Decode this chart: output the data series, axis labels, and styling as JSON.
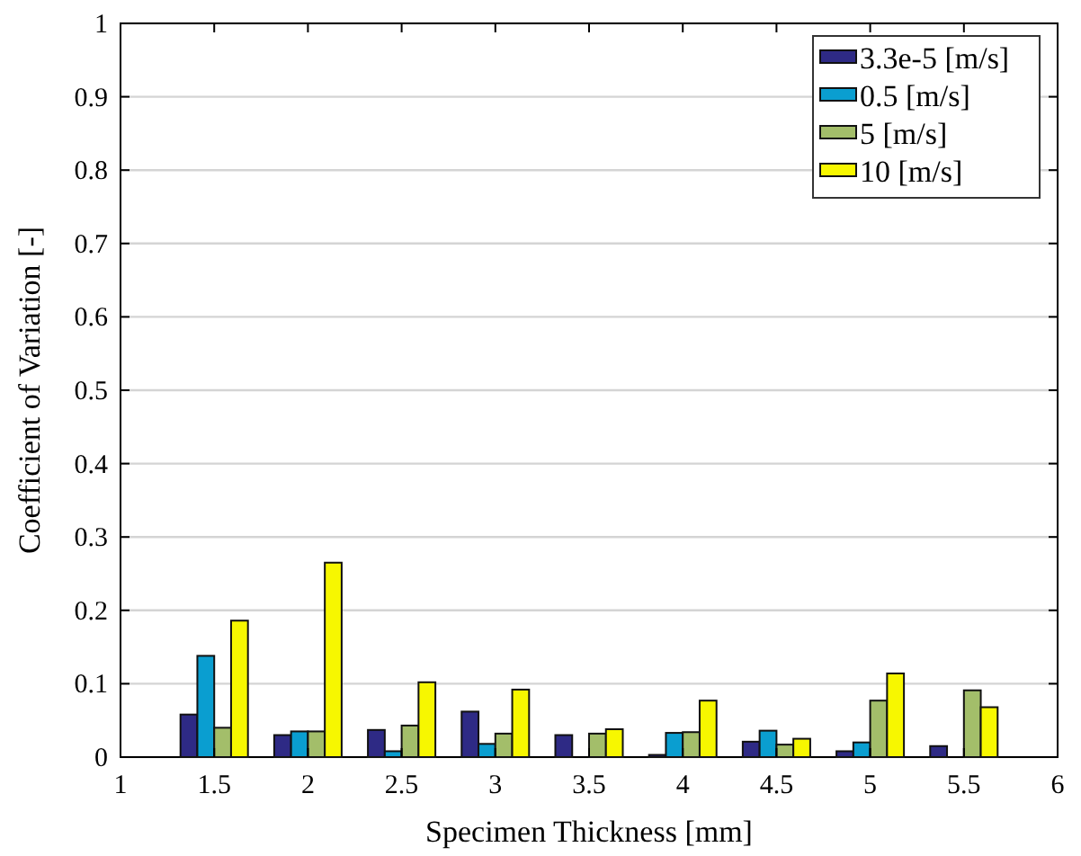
{
  "chart_data": {
    "type": "bar",
    "xlabel": "Specimen Thickness [mm]",
    "ylabel": "Coefficient of Variation [-]",
    "x": [
      1.5,
      2,
      2.5,
      3,
      3.5,
      4,
      4.5,
      5,
      5.5
    ],
    "series": [
      {
        "name": "3.3e-5 [m/s]",
        "color": "#2e2a85",
        "values": [
          0.058,
          0.03,
          0.037,
          0.062,
          0.03,
          0.003,
          0.021,
          0.008,
          0.015
        ]
      },
      {
        "name": "0.5 [m/s]",
        "color": "#0a9ed0",
        "values": [
          0.138,
          0.035,
          0.008,
          0.018,
          null,
          0.033,
          0.036,
          0.02,
          null
        ]
      },
      {
        "name": "5 [m/s]",
        "color": "#a3be6a",
        "values": [
          0.04,
          0.035,
          0.043,
          0.032,
          0.032,
          0.034,
          0.017,
          0.077,
          0.091
        ]
      },
      {
        "name": "10 [m/s]",
        "color": "#f7f700",
        "values": [
          0.186,
          0.265,
          0.102,
          0.092,
          0.038,
          0.077,
          0.025,
          0.114,
          0.068
        ]
      }
    ],
    "xlim": [
      1,
      6
    ],
    "xticks": [
      1,
      1.5,
      2,
      2.5,
      3,
      3.5,
      4,
      4.5,
      5,
      5.5,
      6
    ],
    "ylim": [
      0,
      1
    ],
    "yticks": [
      0,
      0.1,
      0.2,
      0.3,
      0.4,
      0.5,
      0.6,
      0.7,
      0.8,
      0.9,
      1
    ],
    "grid": "y",
    "legend": "top right"
  }
}
